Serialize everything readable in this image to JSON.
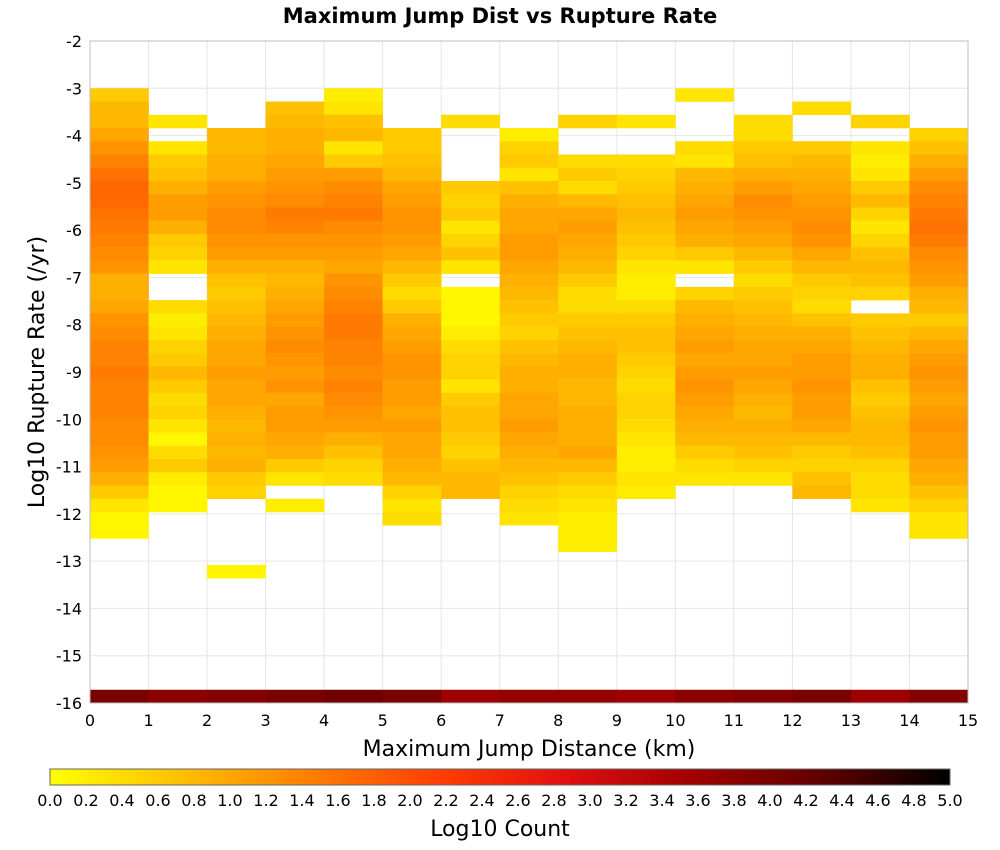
{
  "chart_data": {
    "type": "heatmap",
    "title": "Maximum Jump Dist vs Rupture Rate",
    "xlabel": "Maximum Jump Distance (km)",
    "ylabel": "Log10 Rupture Rate (/yr)",
    "xlim": [
      0,
      15
    ],
    "ylim": [
      -16,
      -2
    ],
    "x_ticks": [
      "0",
      "1",
      "2",
      "3",
      "4",
      "5",
      "6",
      "7",
      "8",
      "9",
      "10",
      "11",
      "12",
      "13",
      "14",
      "15"
    ],
    "y_ticks": [
      "-2",
      "-3",
      "-4",
      "-5",
      "-6",
      "-7",
      "-8",
      "-9",
      "-10",
      "-11",
      "-12",
      "-13",
      "-14",
      "-15",
      "-16"
    ],
    "grid": true,
    "x_bin_width_km": 1,
    "y_bin_height_log10": 0.28,
    "colorbar": {
      "label": "Log10 Count",
      "range": [
        0,
        5
      ],
      "ticks": [
        "0.0",
        "0.2",
        "0.4",
        "0.6",
        "0.8",
        "1.0",
        "1.2",
        "1.4",
        "1.6",
        "1.8",
        "2.0",
        "2.2",
        "2.4",
        "2.6",
        "2.8",
        "3.0",
        "3.2",
        "3.4",
        "3.6",
        "3.8",
        "4.0",
        "4.2",
        "4.4",
        "4.6",
        "4.8",
        "5.0"
      ],
      "colors": [
        "#ffff00",
        "#ffc000",
        "#ff8000",
        "#ff4000",
        "#e01010",
        "#a00000",
        "#600000",
        "#000000"
      ]
    },
    "columns": [
      {
        "x_start": 0,
        "y_top": -3.0,
        "values": [
          0.6,
          0.8,
          0.8,
          1.0,
          1.2,
          1.4,
          1.6,
          1.7,
          1.7,
          1.6,
          1.5,
          1.4,
          1.3,
          1.2,
          0.9,
          0.9,
          1.0,
          1.2,
          1.3,
          1.4,
          1.4,
          1.5,
          1.4,
          1.4,
          1.4,
          1.3,
          1.3,
          1.2,
          1.1,
          0.9,
          0.6,
          0.3,
          0.1,
          0.1
        ],
        "baseline": 4.0
      },
      {
        "x_start": 1,
        "y_top": -3.56,
        "values": [
          0.3,
          null,
          0.3,
          0.6,
          0.7,
          0.9,
          1.1,
          1.1,
          0.9,
          0.6,
          0.5,
          0.3,
          null,
          null,
          0.4,
          0.2,
          0.3,
          0.5,
          0.6,
          0.8,
          0.6,
          0.4,
          0.5,
          0.3,
          0.1,
          0.4,
          0.6,
          0.2,
          0.1,
          0.1
        ],
        "baseline": 3.8
      },
      {
        "x_start": 2,
        "y_top": -3.84,
        "values": [
          0.8,
          0.8,
          0.9,
          0.9,
          1.1,
          1.2,
          1.3,
          1.3,
          1.2,
          1.1,
          0.9,
          0.7,
          0.6,
          0.7,
          0.8,
          0.9,
          1.0,
          1.0,
          1.1,
          1.0,
          1.0,
          0.9,
          0.8,
          0.9,
          0.8,
          0.9,
          0.6,
          0.5,
          null,
          null,
          null,
          null,
          null,
          0.1
        ],
        "baseline": 3.9
      },
      {
        "x_start": 3,
        "y_top": -3.28,
        "values": [
          0.7,
          0.8,
          0.9,
          0.9,
          1.0,
          1.1,
          1.2,
          1.3,
          1.5,
          1.4,
          1.2,
          1.1,
          0.9,
          0.8,
          0.9,
          1.0,
          1.1,
          1.2,
          1.3,
          1.2,
          1.1,
          1.2,
          1.0,
          1.1,
          1.1,
          1.0,
          0.9,
          0.6,
          0.3,
          null,
          0.2
        ],
        "baseline": 4.0
      },
      {
        "x_start": 4,
        "y_top": -3.0,
        "values": [
          0.2,
          0.3,
          0.7,
          0.8,
          0.3,
          0.6,
          1.1,
          1.3,
          1.4,
          1.5,
          1.3,
          1.2,
          1.1,
          1.0,
          1.2,
          1.3,
          1.4,
          1.5,
          1.5,
          1.4,
          1.4,
          1.3,
          1.4,
          1.3,
          1.2,
          1.1,
          0.9,
          0.7,
          0.5,
          0.4
        ],
        "baseline": 4.1
      },
      {
        "x_start": 5,
        "y_top": -3.84,
        "values": [
          0.6,
          0.6,
          0.7,
          0.8,
          1.0,
          1.1,
          1.2,
          1.2,
          1.1,
          1.0,
          0.8,
          0.6,
          0.4,
          0.6,
          0.9,
          1.0,
          1.1,
          1.2,
          1.2,
          1.1,
          1.1,
          1.0,
          1.1,
          1.0,
          1.0,
          0.9,
          0.8,
          0.5,
          0.3,
          0.4
        ],
        "baseline": 4.0
      },
      {
        "x_start": 6,
        "y_top": -3.56,
        "values": [
          0.4,
          null,
          null,
          null,
          null,
          0.6,
          0.5,
          0.6,
          0.3,
          0.5,
          0.7,
          0.3,
          null,
          0.1,
          0.1,
          0.1,
          0.2,
          0.4,
          0.5,
          0.5,
          0.3,
          0.6,
          0.7,
          0.7,
          0.6,
          0.5,
          0.7,
          0.8,
          0.8
        ],
        "baseline": 3.6
      },
      {
        "x_start": 7,
        "y_top": -3.84,
        "values": [
          0.2,
          0.5,
          0.6,
          0.3,
          0.7,
          0.9,
          1.0,
          1.0,
          1.1,
          1.1,
          1.0,
          0.9,
          0.8,
          0.7,
          0.6,
          0.5,
          0.7,
          0.8,
          0.9,
          0.9,
          1.0,
          1.0,
          1.1,
          1.0,
          0.9,
          0.8,
          0.7,
          0.5,
          0.4,
          0.3
        ],
        "baseline": 3.7
      },
      {
        "x_start": 8,
        "y_top": -3.56,
        "values": [
          0.5,
          null,
          null,
          0.4,
          0.6,
          0.4,
          0.8,
          1.0,
          1.1,
          1.0,
          0.9,
          0.8,
          0.6,
          0.4,
          0.4,
          0.6,
          0.7,
          0.8,
          0.9,
          0.9,
          0.8,
          0.8,
          0.9,
          0.9,
          0.9,
          1.0,
          0.8,
          0.6,
          0.4,
          0.3,
          0.2,
          0.2,
          0.2
        ],
        "baseline": 3.7
      },
      {
        "x_start": 9,
        "y_top": -3.56,
        "values": [
          0.3,
          null,
          null,
          0.4,
          0.5,
          0.6,
          0.7,
          0.8,
          0.7,
          0.6,
          0.5,
          0.3,
          0.2,
          0.2,
          0.4,
          0.6,
          0.7,
          0.7,
          0.6,
          0.5,
          0.4,
          0.5,
          0.5,
          0.4,
          0.3,
          0.2,
          0.2,
          0.3,
          0.2
        ],
        "baseline": 3.6
      },
      {
        "x_start": 10,
        "y_top": -3.0,
        "values": [
          0.3,
          null,
          null,
          null,
          0.4,
          0.3,
          0.8,
          0.9,
          1.0,
          1.1,
          1.0,
          0.9,
          0.6,
          0.3,
          null,
          0.5,
          0.8,
          0.9,
          1.0,
          1.1,
          1.0,
          1.1,
          1.2,
          1.1,
          1.0,
          0.9,
          0.8,
          0.6,
          0.4,
          0.3
        ],
        "baseline": 3.8
      },
      {
        "x_start": 11,
        "y_top": -3.56,
        "values": [
          0.4,
          0.4,
          0.6,
          0.7,
          0.9,
          1.1,
          1.3,
          1.2,
          1.1,
          1.0,
          0.8,
          0.6,
          0.4,
          0.6,
          0.7,
          0.8,
          0.9,
          1.0,
          1.0,
          1.1,
          1.0,
          0.9,
          0.8,
          0.9,
          0.8,
          0.7,
          0.5,
          0.3
        ],
        "baseline": 3.9
      },
      {
        "x_start": 12,
        "y_top": -3.28,
        "values": [
          0.4,
          null,
          null,
          0.6,
          0.8,
          0.9,
          1.0,
          1.1,
          1.2,
          1.3,
          1.2,
          1.0,
          0.8,
          0.6,
          0.5,
          0.4,
          0.7,
          0.9,
          1.0,
          1.1,
          1.1,
          1.2,
          1.1,
          1.1,
          1.0,
          0.8,
          0.6,
          0.5,
          0.7,
          0.8
        ],
        "baseline": 4.0
      },
      {
        "x_start": 13,
        "y_top": -3.56,
        "values": [
          0.5,
          null,
          0.3,
          0.2,
          0.3,
          0.6,
          0.8,
          0.5,
          0.3,
          0.5,
          0.7,
          0.8,
          0.7,
          0.5,
          null,
          0.6,
          0.7,
          0.8,
          0.9,
          0.9,
          0.7,
          0.6,
          0.7,
          0.8,
          0.8,
          0.7,
          0.5,
          0.4,
          0.4,
          0.3
        ],
        "baseline": 3.6
      },
      {
        "x_start": 14,
        "y_top": -3.84,
        "values": [
          0.5,
          0.7,
          0.9,
          1.1,
          1.3,
          1.4,
          1.5,
          1.6,
          1.5,
          1.3,
          1.2,
          1.1,
          0.9,
          0.8,
          0.6,
          0.8,
          1.0,
          1.1,
          1.2,
          1.1,
          1.0,
          1.1,
          1.2,
          1.1,
          1.1,
          1.0,
          0.9,
          0.7,
          0.5,
          0.3,
          0.3
        ],
        "baseline": 3.9
      }
    ]
  }
}
